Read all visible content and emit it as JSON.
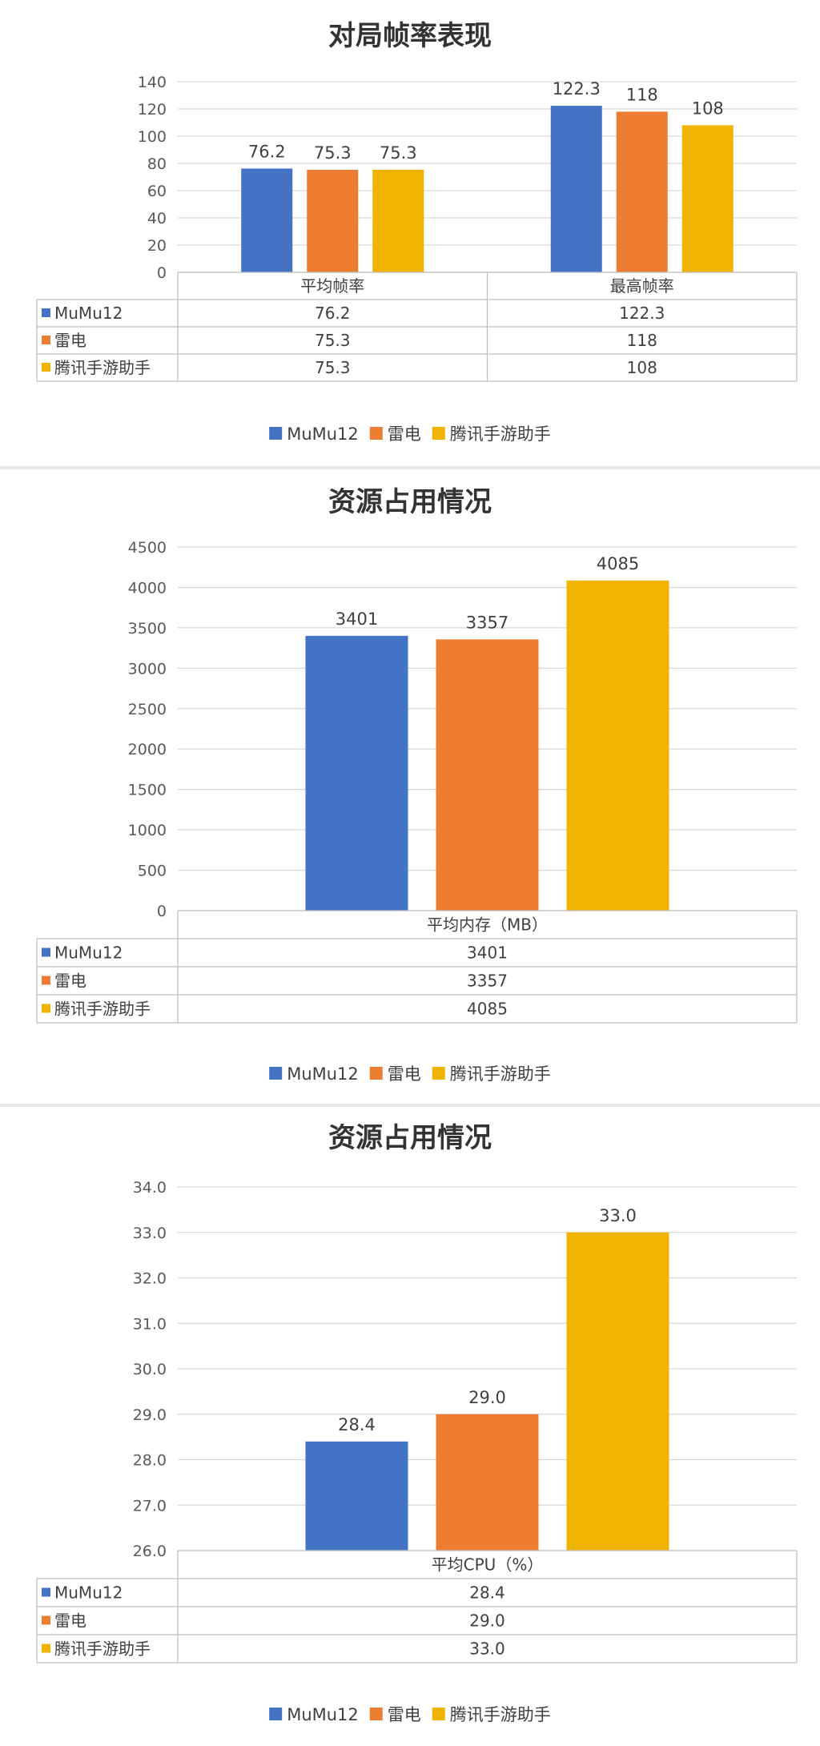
{
  "chart_data": [
    {
      "type": "bar",
      "title": "对局帧率表现",
      "categories": [
        "平均帧率",
        "最高帧率"
      ],
      "series": [
        {
          "name": "MuMu12",
          "values": [
            76.2,
            122.3
          ],
          "color": "#4472c4"
        },
        {
          "name": "雷电",
          "values": [
            75.3,
            118
          ],
          "color": "#ed7d31"
        },
        {
          "name": "腾讯手游助手",
          "values": [
            75.3,
            108
          ],
          "color": "#f0b400"
        }
      ],
      "data_labels": [
        [
          "76.2",
          "122.3"
        ],
        [
          "75.3",
          "118"
        ],
        [
          "75.3",
          "108"
        ]
      ],
      "ylim": [
        0,
        140
      ],
      "yticks": [
        "0",
        "20",
        "40",
        "60",
        "80",
        "100",
        "120",
        "140"
      ],
      "grid": true,
      "data_table": true,
      "legend": "bottom"
    },
    {
      "type": "bar",
      "title": "资源占用情况",
      "categories": [
        "平均内存（MB）"
      ],
      "series": [
        {
          "name": "MuMu12",
          "values": [
            3401
          ],
          "color": "#4472c4"
        },
        {
          "name": "雷电",
          "values": [
            3357
          ],
          "color": "#ed7d31"
        },
        {
          "name": "腾讯手游助手",
          "values": [
            4085
          ],
          "color": "#f0b400"
        }
      ],
      "data_labels": [
        [
          "3401"
        ],
        [
          "3357"
        ],
        [
          "4085"
        ]
      ],
      "ylim": [
        0,
        4500
      ],
      "yticks": [
        "0",
        "500",
        "1000",
        "1500",
        "2000",
        "2500",
        "3000",
        "3500",
        "4000",
        "4500"
      ],
      "grid": true,
      "data_table": true,
      "legend": "bottom"
    },
    {
      "type": "bar",
      "title": "资源占用情况",
      "categories": [
        "平均CPU（%）"
      ],
      "series": [
        {
          "name": "MuMu12",
          "values": [
            28.4
          ],
          "color": "#4472c4"
        },
        {
          "name": "雷电",
          "values": [
            29.0
          ],
          "color": "#ed7d31"
        },
        {
          "name": "腾讯手游助手",
          "values": [
            33.0
          ],
          "color": "#f0b400"
        }
      ],
      "data_labels": [
        [
          "28.4"
        ],
        [
          "29.0"
        ],
        [
          "33.0"
        ]
      ],
      "ylim": [
        26.0,
        34.0
      ],
      "yticks": [
        "26.0",
        "27.0",
        "28.0",
        "29.0",
        "30.0",
        "31.0",
        "32.0",
        "33.0",
        "34.0"
      ],
      "grid": true,
      "data_table": true,
      "legend": "bottom"
    }
  ]
}
